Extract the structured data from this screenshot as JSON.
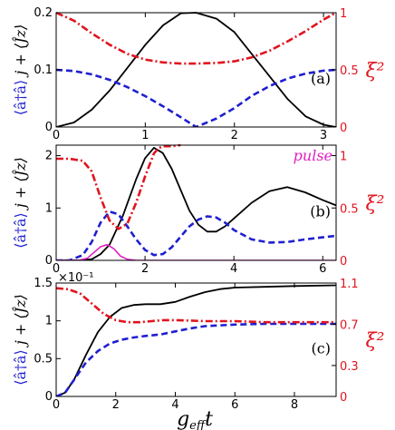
{
  "xlabel": "g_eff t",
  "xlabel_main": "g",
  "xlabel_sub": "eff",
  "xlabel_t": "t",
  "left_label_blue": "⟨â†â⟩",
  "left_label_black": "j + ⟨Ĵz⟩",
  "right_label": "ξ²",
  "colors": {
    "black": "#000000",
    "blue": "#1f1fd0",
    "red": "#e0141e",
    "magenta": "#e020c0"
  },
  "chart_data": [
    {
      "type": "line",
      "panel_label": "(a)",
      "xlim": [
        0,
        3.14159
      ],
      "ylim_left": [
        0,
        0.2
      ],
      "ylim_right": [
        0,
        1
      ],
      "xticks": [
        0,
        1,
        2,
        3
      ],
      "xtick_labels": [
        "0",
        "1",
        "2",
        "3"
      ],
      "yticks_left": [
        0,
        0.1,
        0.2
      ],
      "ytick_labels_left": [
        "0",
        "0.1",
        "0.2"
      ],
      "yticks_right": [
        0,
        0.5,
        1
      ],
      "ytick_labels_right": [
        "0",
        "0.5",
        "1"
      ],
      "left_multiplier_label": "",
      "series": [
        {
          "color": "black",
          "style": "solid",
          "axis": "left",
          "x": [
            0,
            0.2,
            0.4,
            0.6,
            0.8,
            1.0,
            1.2,
            1.4,
            1.57,
            1.8,
            2.0,
            2.2,
            2.4,
            2.6,
            2.8,
            3.0,
            3.14
          ],
          "y": [
            0,
            0.0079,
            0.0303,
            0.0638,
            0.1037,
            0.1438,
            0.178,
            0.199,
            0.2,
            0.1895,
            0.166,
            0.1267,
            0.0876,
            0.0485,
            0.0186,
            0.004,
            0
          ]
        },
        {
          "color": "blue",
          "style": "dashed",
          "axis": "left",
          "x": [
            0,
            0.2,
            0.4,
            0.6,
            0.8,
            1.0,
            1.2,
            1.4,
            1.57,
            1.8,
            2.0,
            2.2,
            2.4,
            2.6,
            2.8,
            3.0,
            3.14
          ],
          "y": [
            0.1,
            0.098,
            0.0921,
            0.0825,
            0.0697,
            0.054,
            0.0362,
            0.017,
            0.0,
            0.015,
            0.033,
            0.055,
            0.072,
            0.085,
            0.0935,
            0.0985,
            0.1
          ]
        },
        {
          "color": "red",
          "style": "dashdot",
          "axis": "right",
          "x": [
            0,
            0.2,
            0.4,
            0.6,
            0.8,
            1.0,
            1.2,
            1.4,
            1.57,
            1.8,
            2.0,
            2.2,
            2.4,
            2.6,
            2.8,
            3.0,
            3.14
          ],
          "y": [
            1.0,
            0.93,
            0.82,
            0.72,
            0.64,
            0.59,
            0.565,
            0.555,
            0.555,
            0.56,
            0.575,
            0.61,
            0.67,
            0.75,
            0.84,
            0.94,
            1.0
          ]
        }
      ]
    },
    {
      "type": "line",
      "panel_label": "(b)",
      "legend_text": "pulse",
      "xlim": [
        0,
        6.3
      ],
      "ylim_left": [
        0,
        2.2
      ],
      "ylim_right": [
        0,
        1.1
      ],
      "xticks": [
        0,
        2,
        4,
        6
      ],
      "xtick_labels": [
        "0",
        "2",
        "4",
        "6"
      ],
      "yticks_left": [
        0,
        1,
        2
      ],
      "ytick_labels_left": [
        "0",
        "1",
        "2"
      ],
      "yticks_right": [
        0,
        0.5,
        1
      ],
      "ytick_labels_right": [
        "0",
        "0.5",
        "1"
      ],
      "left_multiplier_label": "",
      "series": [
        {
          "color": "black",
          "style": "solid",
          "axis": "left",
          "x": [
            0,
            0.5,
            0.8,
            1.0,
            1.2,
            1.5,
            1.8,
            2.0,
            2.2,
            2.4,
            2.6,
            2.8,
            3.0,
            3.2,
            3.4,
            3.6,
            3.8,
            4.0,
            4.4,
            4.8,
            5.2,
            5.6,
            6.0,
            6.3
          ],
          "y": [
            0,
            0,
            0.02,
            0.12,
            0.3,
            0.85,
            1.55,
            1.95,
            2.15,
            2.05,
            1.75,
            1.35,
            0.95,
            0.68,
            0.55,
            0.55,
            0.65,
            0.8,
            1.1,
            1.32,
            1.4,
            1.3,
            1.15,
            1.05
          ]
        },
        {
          "color": "blue",
          "style": "dashed",
          "axis": "left",
          "x": [
            0,
            0.3,
            0.6,
            0.8,
            1.0,
            1.2,
            1.4,
            1.6,
            1.8,
            2.0,
            2.2,
            2.4,
            2.6,
            2.8,
            3.0,
            3.2,
            3.4,
            3.6,
            3.8,
            4.0,
            4.4,
            4.8,
            5.2,
            5.6,
            6.0,
            6.3
          ],
          "y": [
            0,
            0,
            0.1,
            0.35,
            0.72,
            0.93,
            0.88,
            0.65,
            0.4,
            0.2,
            0.1,
            0.12,
            0.25,
            0.45,
            0.65,
            0.78,
            0.84,
            0.82,
            0.72,
            0.58,
            0.4,
            0.34,
            0.35,
            0.4,
            0.44,
            0.47
          ]
        },
        {
          "color": "magenta",
          "style": "solid",
          "axis": "left",
          "x": [
            0,
            0.5,
            0.7,
            0.85,
            1.0,
            1.15,
            1.3,
            1.45,
            1.6,
            1.8,
            2.2,
            6.3
          ],
          "y": [
            0,
            0,
            0.04,
            0.15,
            0.26,
            0.3,
            0.22,
            0.08,
            0.02,
            0,
            0,
            0
          ]
        },
        {
          "color": "red",
          "style": "dashdot",
          "axis": "right",
          "x": [
            0,
            0.3,
            0.6,
            0.8,
            1.0,
            1.2,
            1.4,
            1.6,
            1.8,
            2.0,
            2.2,
            2.3,
            2.4,
            2.6,
            2.8
          ],
          "y": [
            0.97,
            0.97,
            0.95,
            0.85,
            0.6,
            0.38,
            0.3,
            0.35,
            0.55,
            0.8,
            1.02,
            1.07,
            1.09,
            1.09,
            1.1
          ]
        }
      ]
    },
    {
      "type": "line",
      "panel_label": "(c)",
      "xlim": [
        0,
        9.4
      ],
      "ylim_left": [
        0,
        1.5
      ],
      "ylim_right": [
        0,
        1.1
      ],
      "xticks": [
        0,
        2,
        4,
        6,
        8
      ],
      "xtick_labels": [
        "0",
        "2",
        "4",
        "6",
        "8"
      ],
      "yticks_left": [
        0,
        0.5,
        1,
        1.5
      ],
      "ytick_labels_left": [
        "0",
        "0.5",
        "1",
        "1.5"
      ],
      "yticks_right": [
        0,
        0.3,
        0.7,
        1.1
      ],
      "ytick_labels_right": [
        "0",
        "0.3",
        "0.7",
        "1.1"
      ],
      "left_multiplier_label": "×10⁻¹",
      "series": [
        {
          "color": "black",
          "style": "solid",
          "axis": "left",
          "x": [
            0,
            0.3,
            0.6,
            1.0,
            1.4,
            1.8,
            2.2,
            2.6,
            3.0,
            3.5,
            4.0,
            4.5,
            5.0,
            5.5,
            6.0,
            7.0,
            8.0,
            9.4
          ],
          "y": [
            0,
            0.05,
            0.22,
            0.55,
            0.85,
            1.05,
            1.17,
            1.21,
            1.22,
            1.22,
            1.25,
            1.32,
            1.38,
            1.42,
            1.44,
            1.45,
            1.46,
            1.47
          ]
        },
        {
          "color": "blue",
          "style": "dashed",
          "axis": "left",
          "x": [
            0,
            0.3,
            0.6,
            1.0,
            1.4,
            1.8,
            2.2,
            2.6,
            3.0,
            3.5,
            4.0,
            4.5,
            5.0,
            6.0,
            7.0,
            8.0,
            9.4
          ],
          "y": [
            0,
            0.05,
            0.22,
            0.45,
            0.6,
            0.7,
            0.75,
            0.78,
            0.8,
            0.82,
            0.86,
            0.9,
            0.93,
            0.95,
            0.96,
            0.96,
            0.96
          ]
        },
        {
          "color": "red",
          "style": "dashdot",
          "axis": "right",
          "x": [
            0,
            0.4,
            0.8,
            1.2,
            1.6,
            2.0,
            2.4,
            2.8,
            3.2,
            3.6,
            4.0,
            5.0,
            6.0,
            7.0,
            8.0,
            9.4
          ],
          "y": [
            1.05,
            1.04,
            1.0,
            0.9,
            0.8,
            0.74,
            0.72,
            0.72,
            0.73,
            0.74,
            0.74,
            0.73,
            0.73,
            0.72,
            0.72,
            0.72
          ]
        }
      ]
    }
  ]
}
